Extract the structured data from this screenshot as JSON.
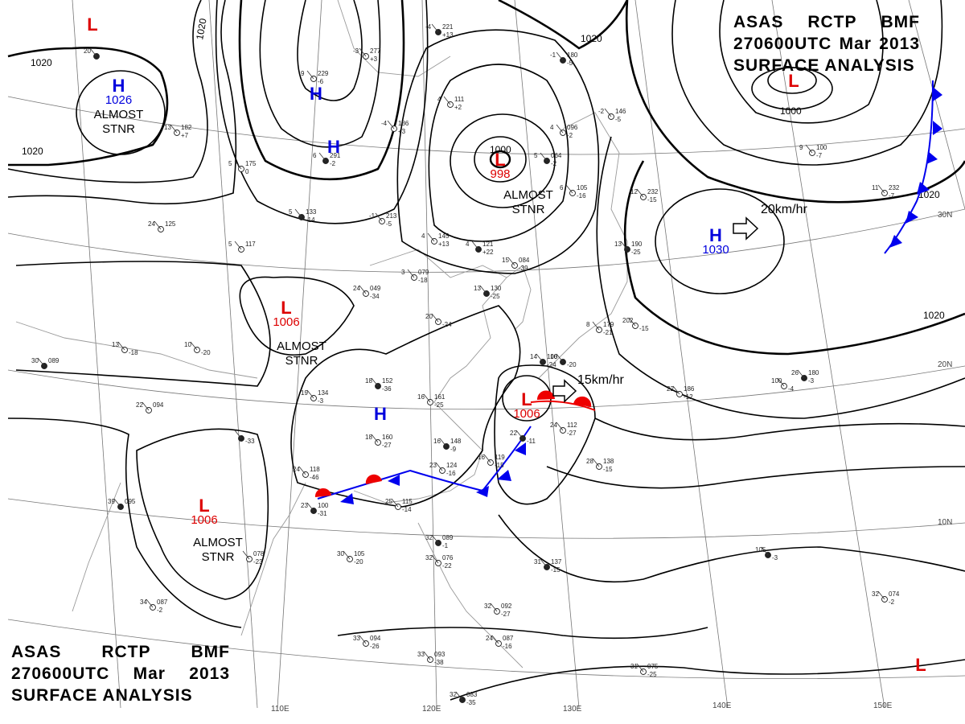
{
  "header": {
    "top_right": {
      "line1": [
        "ASAS",
        "RCTP",
        "BMF"
      ],
      "line2": [
        "270600UTC",
        "Mar",
        "2013"
      ],
      "line3": "SURFACE ANALYSIS"
    },
    "bottom_left": {
      "line1": [
        "ASAS",
        "RCTP",
        "BMF"
      ],
      "line2": [
        "270600UTC",
        "Mar",
        "2013"
      ],
      "line3": "SURFACE ANALYSIS"
    }
  },
  "graticule": {
    "longitudes": [
      "110E",
      "120E",
      "130E",
      "140E",
      "150E"
    ],
    "latitudes": [
      "30N",
      "20N",
      "10N"
    ]
  },
  "isobar_labels": [
    "1020",
    "1020",
    "1020",
    "1000",
    "1020",
    "1020",
    "1000",
    "1020"
  ],
  "pressure_systems": {
    "high_nw": {
      "letter": "H",
      "pressure": "1026",
      "note1": "ALMOST",
      "note2": "STNR"
    },
    "high_mongolia": {
      "letter": "H",
      "pressure": ""
    },
    "high_mongolia_2": {
      "letter": "H",
      "pressure": ""
    },
    "low_okhotsk": {
      "letter": "L",
      "pressure": "998",
      "note1": "ALMOST",
      "note2": "STNR"
    },
    "low_aleutian": {
      "letter": "L",
      "pressure": "1000"
    },
    "high_pacific": {
      "letter": "H",
      "pressure": "1030",
      "motion": "20km/hr"
    },
    "low_tibet": {
      "letter": "L",
      "pressure": "1006",
      "note1": "ALMOST",
      "note2": "STNR"
    },
    "high_china": {
      "letter": "H",
      "pressure": ""
    },
    "low_east_china_sea": {
      "letter": "L",
      "pressure": "1006",
      "motion": "15km/hr"
    },
    "low_indochina": {
      "letter": "L",
      "pressure": "1006",
      "note1": "ALMOST",
      "note2": "STNR"
    },
    "low_nw_corner": {
      "letter": "L"
    },
    "low_se_corner": {
      "letter": "L"
    }
  },
  "stations": [
    {
      "t": "20",
      "p": "",
      "d": ""
    },
    {
      "t": "13",
      "p": "182",
      "d": "+7"
    },
    {
      "t": "5",
      "p": "175",
      "d": "0"
    },
    {
      "t": "5",
      "p": "133",
      "d": "-14"
    },
    {
      "t": "-1",
      "p": "213",
      "d": "-5"
    },
    {
      "t": "-3",
      "p": "277",
      "d": "+3"
    },
    {
      "t": "-4",
      "p": "221",
      "d": "+13"
    },
    {
      "t": "-4",
      "p": "186",
      "d": "+3"
    },
    {
      "t": "4",
      "p": "111",
      "d": "+2"
    },
    {
      "t": "-1",
      "p": "180",
      "d": "-5"
    },
    {
      "t": "-2",
      "p": "146",
      "d": "-5"
    },
    {
      "t": "4",
      "p": "145",
      "d": "+13"
    },
    {
      "t": "4",
      "p": "121",
      "d": "+22"
    },
    {
      "t": "15",
      "p": "084",
      "d": "-39"
    },
    {
      "t": "3",
      "p": "079",
      "d": "-18"
    },
    {
      "t": "13",
      "p": "130",
      "d": "-25"
    },
    {
      "t": "24",
      "p": "049",
      "d": "-34"
    },
    {
      "t": "20",
      "p": "",
      "d": "-24"
    },
    {
      "t": "16",
      "p": "",
      "d": "-20"
    },
    {
      "t": "13",
      "p": "",
      "d": "-18"
    },
    {
      "t": "10",
      "p": "",
      "d": "-20"
    },
    {
      "t": "30",
      "p": "089",
      "d": ""
    },
    {
      "t": "22",
      "p": "094",
      "d": ""
    },
    {
      "t": "19",
      "p": "134",
      "d": "-3"
    },
    {
      "t": "18",
      "p": "152",
      "d": "-36"
    },
    {
      "t": "16",
      "p": "161",
      "d": "-25"
    },
    {
      "t": "18",
      "p": "160",
      "d": "-27"
    },
    {
      "t": "16",
      "p": "148",
      "d": "-9"
    },
    {
      "t": "16",
      "p": "119",
      "d": "-15"
    },
    {
      "t": "24",
      "p": "118",
      "d": "-46"
    },
    {
      "t": "23",
      "p": "100",
      "d": "-31"
    },
    {
      "t": "25",
      "p": "115",
      "d": "-14"
    },
    {
      "t": "23",
      "p": "124",
      "d": "-16"
    },
    {
      "t": "22",
      "p": "",
      "d": "-11"
    },
    {
      "t": "24",
      "p": "112",
      "d": "-27"
    },
    {
      "t": "28",
      "p": "138",
      "d": "-15"
    },
    {
      "t": "14",
      "p": "100",
      "d": "-24"
    },
    {
      "t": "8",
      "p": "179",
      "d": "-21"
    },
    {
      "t": "202",
      "p": "",
      "d": "-15"
    },
    {
      "t": "13",
      "p": "190",
      "d": "-25"
    },
    {
      "t": "12",
      "p": "232",
      "d": "-15"
    },
    {
      "t": "22",
      "p": "186",
      "d": "-12"
    },
    {
      "t": "26",
      "p": "180",
      "d": "-3"
    },
    {
      "t": "9",
      "p": "100",
      "d": "-7"
    },
    {
      "t": "4",
      "p": "096",
      "d": "-2"
    },
    {
      "t": "5",
      "p": "064",
      "d": "-2"
    },
    {
      "t": "6",
      "p": "105",
      "d": "-16"
    },
    {
      "t": "9",
      "p": "229",
      "d": "-6"
    },
    {
      "t": "6",
      "p": "291",
      "d": "-2"
    },
    {
      "t": "5",
      "p": "117",
      "d": ""
    },
    {
      "t": "24",
      "p": "125",
      "d": ""
    },
    {
      "t": "",
      "p": "",
      "d": "-33"
    },
    {
      "t": "30",
      "p": "105",
      "d": "-20"
    },
    {
      "t": "",
      "p": "078",
      "d": "-23"
    },
    {
      "t": "39",
      "p": "095",
      "d": ""
    },
    {
      "t": "34",
      "p": "087",
      "d": "-2"
    },
    {
      "t": "33",
      "p": "094",
      "d": "-26"
    },
    {
      "t": "32",
      "p": "089",
      "d": "-1"
    },
    {
      "t": "32",
      "p": "076",
      "d": "-22"
    },
    {
      "t": "33",
      "p": "093",
      "d": "-38"
    },
    {
      "t": "31",
      "p": "137",
      "d": "-15"
    },
    {
      "t": "32",
      "p": "092",
      "d": "-27"
    },
    {
      "t": "31",
      "p": "075",
      "d": "-25"
    },
    {
      "t": "32",
      "p": "083",
      "d": "-35"
    },
    {
      "t": "24",
      "p": "087",
      "d": "-16"
    },
    {
      "t": "32",
      "p": "074",
      "d": "-2"
    },
    {
      "t": "105",
      "p": "",
      "d": "-3"
    },
    {
      "t": "11",
      "p": "232",
      "d": "-7"
    },
    {
      "t": "100",
      "p": "",
      "d": "-4"
    }
  ],
  "colors": {
    "isobar": "#000000",
    "graticule": "#666666",
    "coast": "#999999",
    "high": "#0000dd",
    "low": "#dd0000",
    "cold_front": "#0000ee",
    "warm_front": "#ee0000"
  }
}
